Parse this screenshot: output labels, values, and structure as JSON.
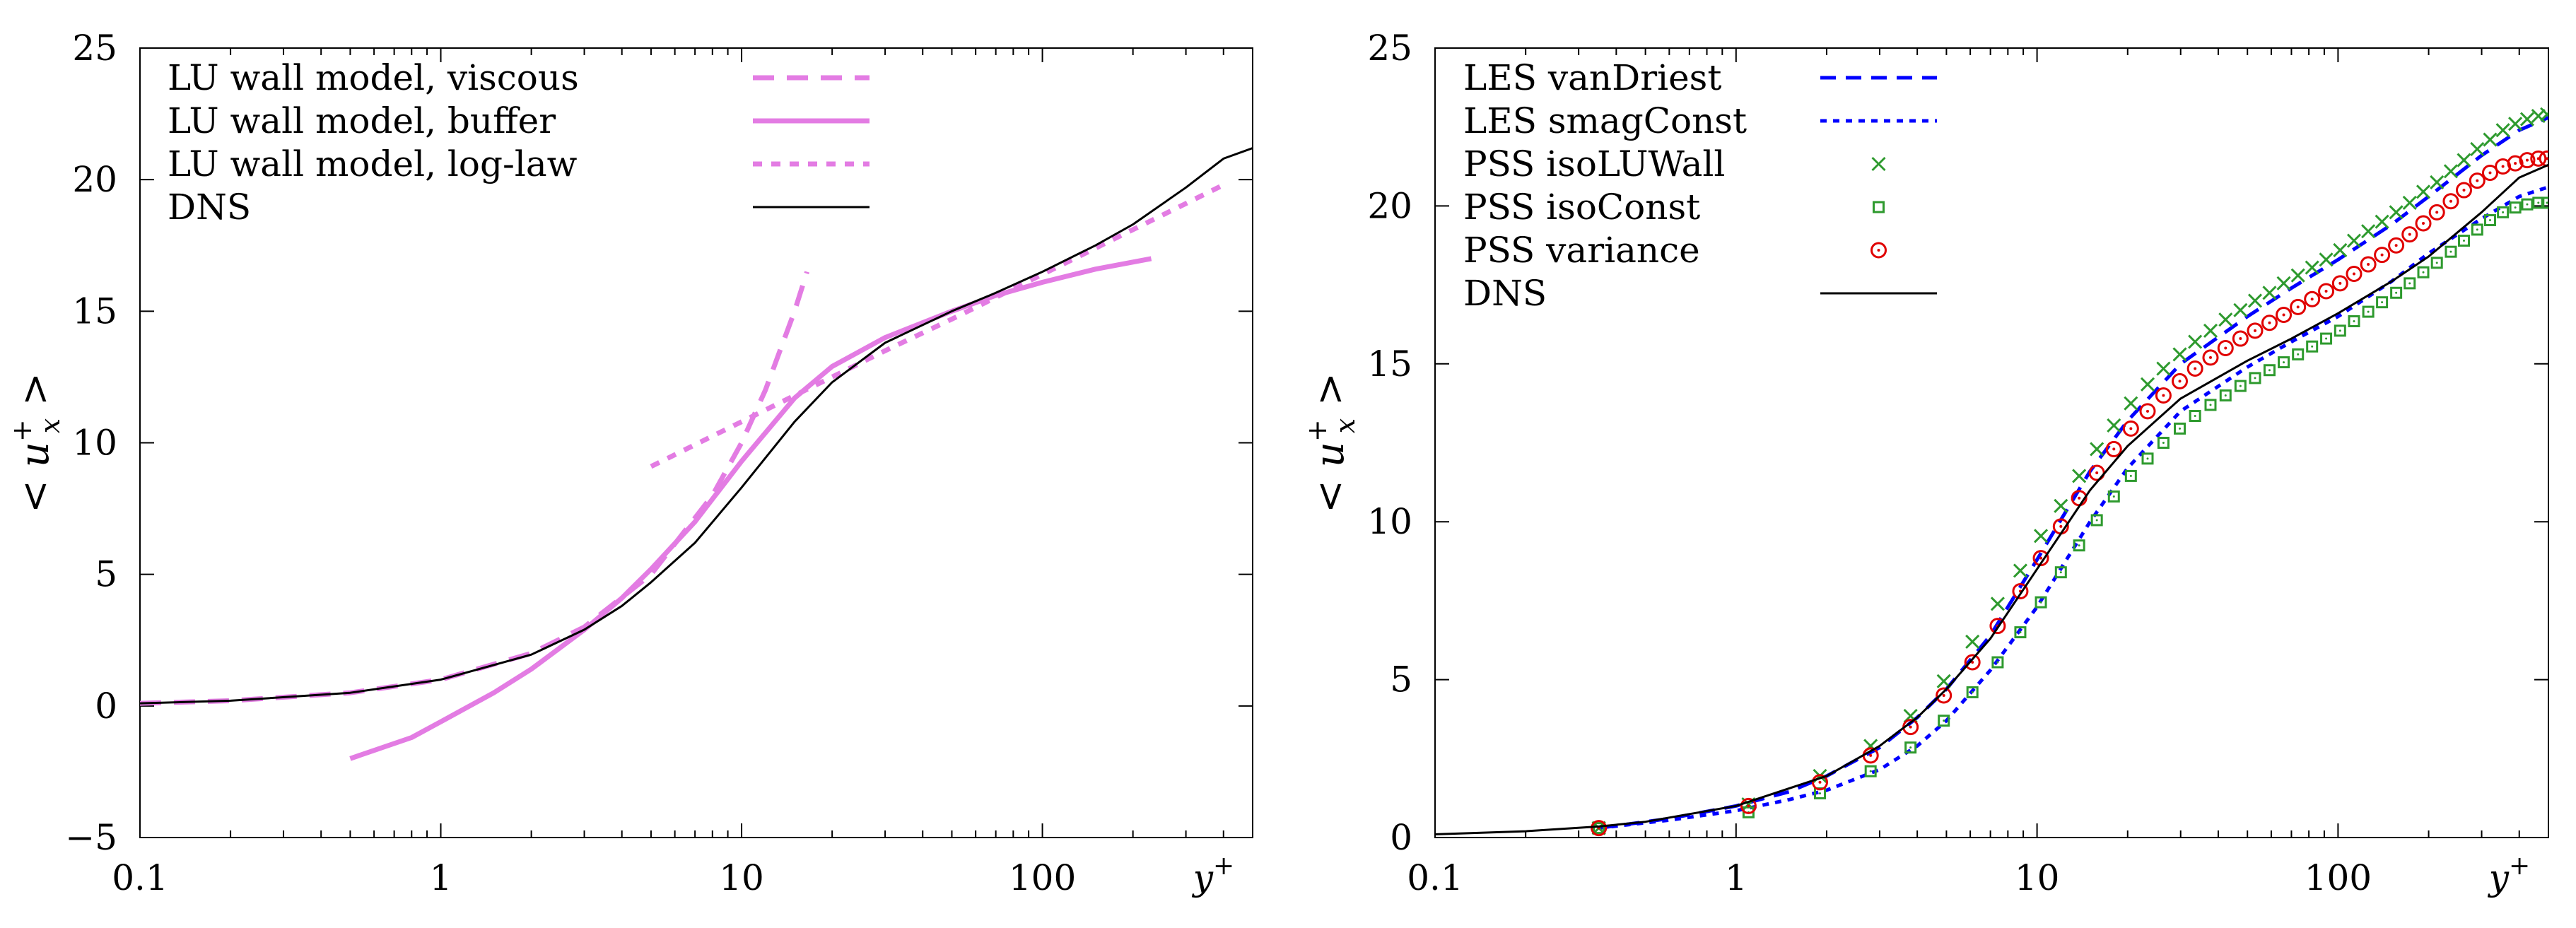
{
  "chart_data": [
    {
      "type": "line",
      "xscale": "log",
      "xlim": [
        0.1,
        500
      ],
      "ylim": [
        -5,
        25
      ],
      "xticks": [
        0.1,
        1,
        10,
        100
      ],
      "xtick_labels": [
        "0.1",
        "1",
        "10",
        "100"
      ],
      "yticks": [
        -5,
        0,
        5,
        10,
        15,
        20,
        25
      ],
      "ytick_labels": [
        "−5",
        "0",
        "5",
        "10",
        "15",
        "20",
        "25"
      ],
      "xlabel": "y",
      "xlabel_sup": "+",
      "ylabel_left": "<",
      "ylabel_var": "u",
      "ylabel_sup": "+",
      "ylabel_sub": "x",
      "ylabel_right": ">",
      "legend_position": "top-left",
      "series": [
        {
          "name": "LU wall model, viscous",
          "color": "#e37ce3",
          "style": "dashed",
          "x": [
            0.1,
            0.2,
            0.5,
            1,
            2,
            3,
            5,
            8,
            10,
            12,
            15,
            16.5
          ],
          "y": [
            0.1,
            0.2,
            0.5,
            1,
            2,
            3,
            5,
            8,
            10,
            12,
            15,
            16.5
          ]
        },
        {
          "name": "LU wall model, buffer",
          "color": "#e37ce3",
          "style": "solid",
          "x": [
            0.5,
            0.8,
            1,
            1.5,
            2,
            3,
            4,
            5,
            7,
            10,
            15,
            20,
            30,
            50,
            70,
            100,
            150,
            230
          ],
          "y": [
            -2.0,
            -1.2,
            -0.6,
            0.5,
            1.4,
            2.9,
            4.1,
            5.2,
            7.0,
            9.3,
            11.7,
            12.9,
            14.0,
            15.0,
            15.6,
            16.1,
            16.6,
            17.0
          ]
        },
        {
          "name": "LU wall model, log-law",
          "color": "#e37ce3",
          "style": "dotted",
          "x": [
            5,
            10,
            20,
            30,
            50,
            100,
            200,
            400
          ],
          "y": [
            9.1,
            10.8,
            12.5,
            13.5,
            14.7,
            16.4,
            18.1,
            19.8
          ]
        },
        {
          "name": "DNS",
          "color": "#000000",
          "style": "solid",
          "x": [
            0.1,
            0.2,
            0.5,
            1,
            2,
            3,
            4,
            5,
            7,
            10,
            15,
            20,
            30,
            50,
            70,
            100,
            150,
            200,
            300,
            400,
            500
          ],
          "y": [
            0.1,
            0.2,
            0.5,
            1.0,
            1.95,
            2.9,
            3.8,
            4.7,
            6.2,
            8.3,
            10.8,
            12.3,
            13.8,
            15.0,
            15.7,
            16.5,
            17.5,
            18.3,
            19.7,
            20.8,
            21.2
          ]
        }
      ]
    },
    {
      "type": "line",
      "xscale": "log",
      "xlim": [
        0.1,
        500
      ],
      "ylim": [
        0,
        25
      ],
      "xticks": [
        0.1,
        1,
        10,
        100
      ],
      "xtick_labels": [
        "0.1",
        "1",
        "10",
        "100"
      ],
      "yticks": [
        0,
        5,
        10,
        15,
        20,
        25
      ],
      "ytick_labels": [
        "0",
        "5",
        "10",
        "15",
        "20",
        "25"
      ],
      "xlabel": "y",
      "xlabel_sup": "+",
      "ylabel_left": "<",
      "ylabel_var": "u",
      "ylabel_sup": "+",
      "ylabel_sub": "x",
      "ylabel_right": ">",
      "legend_position": "top-left",
      "series": [
        {
          "name": "LES vanDriest",
          "color": "#0000ff",
          "style": "dashed",
          "x": [
            0.35,
            0.6,
            1,
            1.5,
            2,
            3,
            4,
            5,
            7,
            10,
            15,
            20,
            30,
            50,
            70,
            100,
            150,
            200,
            300,
            400,
            500
          ],
          "y": [
            0.3,
            0.6,
            1.0,
            1.45,
            1.95,
            2.85,
            3.8,
            4.7,
            6.4,
            8.8,
            11.6,
            13.2,
            15.0,
            16.5,
            17.4,
            18.3,
            19.4,
            20.3,
            21.6,
            22.4,
            22.8
          ]
        },
        {
          "name": "LES smagConst",
          "color": "#0000ff",
          "style": "dotted",
          "x": [
            0.35,
            0.6,
            1,
            1.5,
            2,
            3,
            4,
            5,
            7,
            10,
            15,
            20,
            30,
            50,
            70,
            100,
            150,
            200,
            300,
            400,
            500
          ],
          "y": [
            0.3,
            0.55,
            0.85,
            1.2,
            1.5,
            2.15,
            2.9,
            3.7,
            5.3,
            7.3,
            10.0,
            11.7,
            13.5,
            14.9,
            15.7,
            16.5,
            17.6,
            18.5,
            19.6,
            20.3,
            20.6
          ]
        },
        {
          "name": "PSS isoLUWall",
          "color": "#2e9a2e",
          "style": "marker-x",
          "x": [
            0.35,
            1.1,
            1.9,
            2.8,
            3.8,
            4.9,
            6.1,
            7.4,
            8.8,
            10.3,
            12.0,
            13.8,
            15.8,
            18.0,
            20.5,
            23.3,
            26.3,
            29.8,
            33.5,
            37.7,
            42.3,
            47.4,
            53.0,
            59.2,
            66.0,
            73.6,
            82.0,
            91.3,
            101.6,
            113,
            126,
            140,
            156,
            173,
            192,
            213,
            237,
            262,
            290,
            320,
            353,
            388,
            425,
            463,
            495
          ],
          "y": [
            0.3,
            1.05,
            1.95,
            2.9,
            3.85,
            4.95,
            6.2,
            7.4,
            8.45,
            9.55,
            10.5,
            11.45,
            12.3,
            13.05,
            13.75,
            14.35,
            14.85,
            15.3,
            15.7,
            16.05,
            16.4,
            16.7,
            17.0,
            17.25,
            17.55,
            17.8,
            18.05,
            18.3,
            18.6,
            18.9,
            19.2,
            19.5,
            19.8,
            20.1,
            20.45,
            20.75,
            21.1,
            21.45,
            21.8,
            22.1,
            22.4,
            22.6,
            22.75,
            22.85,
            22.9
          ]
        },
        {
          "name": "PSS isoConst",
          "color": "#2e9a2e",
          "style": "marker-square",
          "x": [
            0.35,
            1.1,
            1.9,
            2.8,
            3.8,
            4.9,
            6.1,
            7.4,
            8.8,
            10.3,
            12.0,
            13.8,
            15.8,
            18.0,
            20.5,
            23.3,
            26.3,
            29.8,
            33.5,
            37.7,
            42.3,
            47.4,
            53.0,
            59.2,
            66.0,
            73.6,
            82.0,
            91.3,
            101.6,
            113,
            126,
            140,
            156,
            173,
            192,
            213,
            237,
            262,
            290,
            320,
            353,
            388,
            425,
            463,
            495
          ],
          "y": [
            0.3,
            0.8,
            1.4,
            2.1,
            2.85,
            3.7,
            4.6,
            5.55,
            6.5,
            7.45,
            8.4,
            9.25,
            10.05,
            10.8,
            11.45,
            12.0,
            12.5,
            12.95,
            13.35,
            13.7,
            14.0,
            14.3,
            14.55,
            14.8,
            15.05,
            15.3,
            15.55,
            15.8,
            16.05,
            16.35,
            16.65,
            16.95,
            17.25,
            17.55,
            17.9,
            18.2,
            18.55,
            18.9,
            19.25,
            19.55,
            19.8,
            19.95,
            20.05,
            20.1,
            20.1
          ]
        },
        {
          "name": "PSS variance",
          "color": "#e00000",
          "style": "marker-circle",
          "x": [
            0.35,
            1.1,
            1.9,
            2.8,
            3.8,
            4.9,
            6.1,
            7.4,
            8.8,
            10.3,
            12.0,
            13.8,
            15.8,
            18.0,
            20.5,
            23.3,
            26.3,
            29.8,
            33.5,
            37.7,
            42.3,
            47.4,
            53.0,
            59.2,
            66.0,
            73.6,
            82.0,
            91.3,
            101.6,
            113,
            126,
            140,
            156,
            173,
            192,
            213,
            237,
            262,
            290,
            320,
            353,
            388,
            425,
            463,
            495
          ],
          "y": [
            0.3,
            1.0,
            1.75,
            2.6,
            3.5,
            4.5,
            5.55,
            6.7,
            7.8,
            8.85,
            9.85,
            10.75,
            11.55,
            12.3,
            12.95,
            13.5,
            14.0,
            14.45,
            14.85,
            15.2,
            15.5,
            15.8,
            16.05,
            16.3,
            16.55,
            16.8,
            17.05,
            17.3,
            17.55,
            17.85,
            18.15,
            18.45,
            18.75,
            19.1,
            19.45,
            19.8,
            20.15,
            20.5,
            20.8,
            21.05,
            21.25,
            21.35,
            21.45,
            21.5,
            21.5
          ]
        },
        {
          "name": "DNS",
          "color": "#000000",
          "style": "solid",
          "x": [
            0.1,
            0.2,
            0.35,
            0.5,
            1,
            2,
            3,
            4,
            5,
            7,
            10,
            15,
            20,
            30,
            50,
            70,
            100,
            150,
            200,
            300,
            400,
            500
          ],
          "y": [
            0.1,
            0.2,
            0.35,
            0.5,
            1.0,
            1.95,
            2.9,
            3.8,
            4.7,
            6.3,
            8.5,
            11.0,
            12.4,
            13.9,
            15.1,
            15.8,
            16.6,
            17.6,
            18.4,
            19.8,
            20.9,
            21.3
          ]
        }
      ]
    }
  ]
}
